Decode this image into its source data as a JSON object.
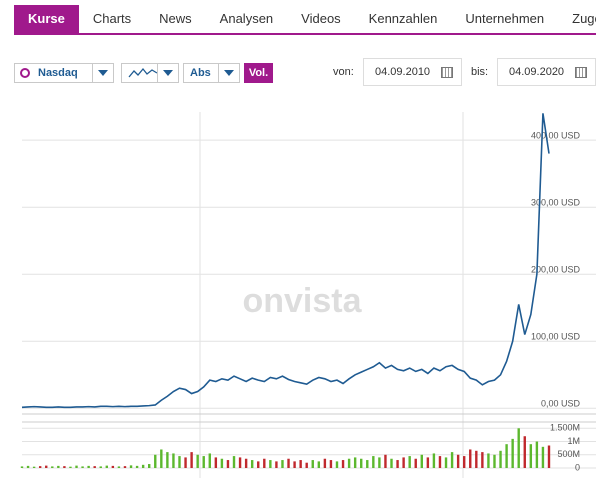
{
  "tabs": [
    "Kurse",
    "Charts",
    "News",
    "Analysen",
    "Videos",
    "Kennzahlen",
    "Unternehmen",
    "Zugehö"
  ],
  "controls": {
    "exchange": "Nasdaq",
    "scale": "Abs",
    "volume": "Vol.",
    "from_label": "von:",
    "from": "04.09.2010",
    "to_label": "bis:",
    "to": "04.09.2020"
  },
  "watermark": "onvista",
  "chart_data": [
    {
      "type": "line",
      "color": "#1f5b92",
      "values": [
        1.5,
        2,
        2.5,
        2,
        1.5,
        1.5,
        2,
        1.5,
        1.5,
        2,
        2,
        2.5,
        2,
        3,
        3,
        2.5,
        3,
        2.5,
        3,
        3,
        3.5,
        4,
        5,
        12,
        18,
        25,
        30,
        28,
        22,
        25,
        32,
        42,
        40,
        44,
        42,
        48,
        44,
        40,
        45,
        42,
        40,
        46,
        44,
        48,
        43,
        40,
        38,
        36,
        42,
        46,
        44,
        40,
        42,
        37,
        44,
        50,
        54,
        58,
        62,
        68,
        60,
        64,
        58,
        56,
        60,
        55,
        58,
        52,
        60,
        56,
        62,
        64,
        58,
        55,
        45,
        42,
        35,
        40,
        42,
        50,
        70,
        100,
        155,
        110,
        140,
        200,
        440,
        380
      ],
      "ylim": [
        -7,
        442
      ],
      "yticks": [
        {
          "value": 0,
          "label": "0,00 USD"
        },
        {
          "value": 100,
          "label": "100,00 USD"
        },
        {
          "value": 200,
          "label": "200,00 USD"
        },
        {
          "value": 300,
          "label": "300,00 USD"
        },
        {
          "value": 400,
          "label": "400,00 USD"
        }
      ],
      "grid": true
    },
    {
      "type": "bar",
      "up_color": "#5cb82e",
      "down_color": "#c0282d",
      "values": [
        60000,
        80000,
        50000,
        70000,
        90000,
        60000,
        80000,
        70000,
        50000,
        90000,
        60000,
        80000,
        70000,
        60000,
        90000,
        80000,
        60000,
        70000,
        100000,
        80000,
        120000,
        150000,
        500000,
        700000,
        600000,
        550000,
        450000,
        400000,
        600000,
        500000,
        450000,
        550000,
        400000,
        350000,
        300000,
        450000,
        400000,
        350000,
        300000,
        250000,
        350000,
        300000,
        250000,
        300000,
        350000,
        250000,
        300000,
        200000,
        300000,
        250000,
        350000,
        300000,
        250000,
        300000,
        350000,
        400000,
        350000,
        300000,
        450000,
        400000,
        500000,
        350000,
        300000,
        400000,
        450000,
        350000,
        500000,
        400000,
        550000,
        450000,
        400000,
        600000,
        500000,
        450000,
        700000,
        650000,
        600000,
        550000,
        500000,
        650000,
        900000,
        1100000,
        1500000,
        1200000,
        900000,
        1000000,
        800000,
        850000
      ],
      "ylim": [
        0,
        1700000
      ],
      "yticks": [
        0,
        {
          "value": 500000,
          "label": "500M"
        },
        {
          "value": 1000000,
          "label": "1M"
        },
        {
          "value": 1500000,
          "label": "1.500M"
        }
      ],
      "grid": true
    }
  ]
}
